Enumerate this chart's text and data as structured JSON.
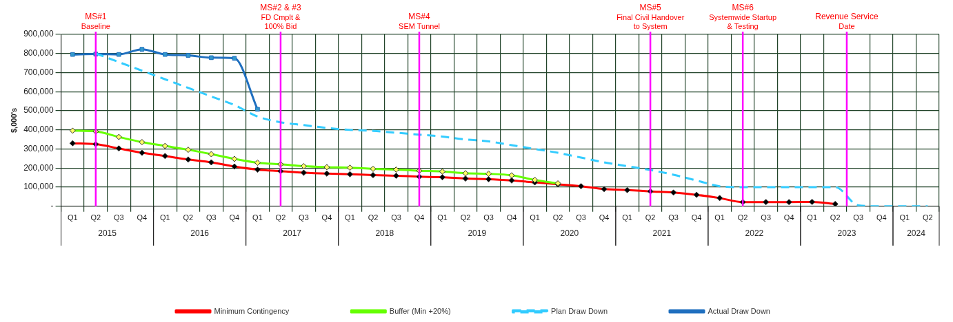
{
  "chart_data": {
    "type": "line",
    "ylabel": "$,000's",
    "categories": [
      "Q1",
      "Q2",
      "Q3",
      "Q4",
      "Q1",
      "Q2",
      "Q3",
      "Q4",
      "Q1",
      "Q2",
      "Q3",
      "Q4",
      "Q1",
      "Q2",
      "Q3",
      "Q4",
      "Q1",
      "Q2",
      "Q3",
      "Q4",
      "Q1",
      "Q2",
      "Q3",
      "Q4",
      "Q1",
      "Q2",
      "Q3",
      "Q4",
      "Q1",
      "Q2",
      "Q3",
      "Q4",
      "Q1",
      "Q2",
      "Q3",
      "Q4",
      "Q1",
      "Q2"
    ],
    "annotations": [
      "MS#1\nBaseline",
      "MS#2 & #3\nFD Cmplt &\n100% Bid",
      "MS#4\nSEM Tunnel",
      "MS#5\nFinal Civil Handover\nto System",
      "MS#6\nSystemwide Startup\n& Testing",
      "Revenue Service\nDate",
      "2015",
      "2016",
      "2017",
      "2018",
      "2019",
      "2020",
      "2021",
      "2022",
      "2023",
      "2024"
    ],
    "series": [
      {
        "name": "Minimum Contingency",
        "color": "#ff0000",
        "marker": "diamond",
        "line_style": "solid",
        "values": [
          330000,
          325000,
          303000,
          280000,
          263000,
          245000,
          230000,
          208000,
          192000,
          184000,
          176000,
          171000,
          168000,
          163000,
          160000,
          155000,
          152000,
          145000,
          142000,
          135000,
          125000,
          115000,
          105000,
          90000,
          85000,
          78000,
          72000,
          60000,
          43000,
          22000,
          22000,
          22000,
          23000,
          12000,
          null,
          null,
          null,
          null
        ]
      },
      {
        "name": "Buffer (Min +20%)",
        "color": "#66ff00",
        "marker": "diamond",
        "line_style": "solid",
        "values": [
          396000,
          392000,
          363000,
          336000,
          316000,
          296000,
          273000,
          248000,
          228000,
          220000,
          210000,
          205000,
          202000,
          196000,
          192000,
          186000,
          182000,
          173000,
          170000,
          162000,
          138000,
          120000,
          null,
          null,
          null,
          null,
          null,
          null,
          null,
          null,
          null,
          null,
          null,
          null,
          null,
          null,
          null,
          null
        ]
      },
      {
        "name": "Plan Draw Down",
        "color": "#33ccff",
        "marker": "none",
        "line_style": "dashed",
        "values": [
          null,
          800000,
          755000,
          710000,
          665000,
          620000,
          575000,
          530000,
          470000,
          440000,
          425000,
          410000,
          400000,
          395000,
          385000,
          375000,
          365000,
          350000,
          340000,
          320000,
          300000,
          280000,
          255000,
          230000,
          210000,
          190000,
          165000,
          135000,
          105000,
          100000,
          100000,
          100000,
          100000,
          100000,
          5000,
          0,
          0,
          0
        ]
      },
      {
        "name": "Actual Draw Down",
        "color": "#1f6fbf",
        "marker": "square",
        "line_style": "solid",
        "values": [
          795000,
          797000,
          795000,
          822000,
          795000,
          790000,
          778000,
          775000,
          508000,
          null,
          null,
          null,
          null,
          null,
          null,
          null,
          null,
          null,
          null,
          null,
          null,
          null,
          null,
          null,
          null,
          null,
          null,
          null,
          null,
          null,
          null,
          null,
          null,
          null,
          null,
          null,
          null,
          null
        ]
      }
    ],
    "ylim": [
      0,
      900000
    ],
    "yticks": [
      {
        "value": 0,
        "label": "-"
      },
      {
        "value": 100000,
        "label": "100,000"
      },
      {
        "value": 200000,
        "label": "200,000"
      },
      {
        "value": 300000,
        "label": "300,000"
      },
      {
        "value": 400000,
        "label": "400,000"
      },
      {
        "value": 500000,
        "label": "500,000"
      },
      {
        "value": 600000,
        "label": "600,000"
      },
      {
        "value": 700000,
        "label": "700,000"
      },
      {
        "value": 800000,
        "label": "800,000"
      },
      {
        "value": 900000,
        "label": "900,000"
      }
    ],
    "grid": true,
    "legend": "bottom"
  }
}
